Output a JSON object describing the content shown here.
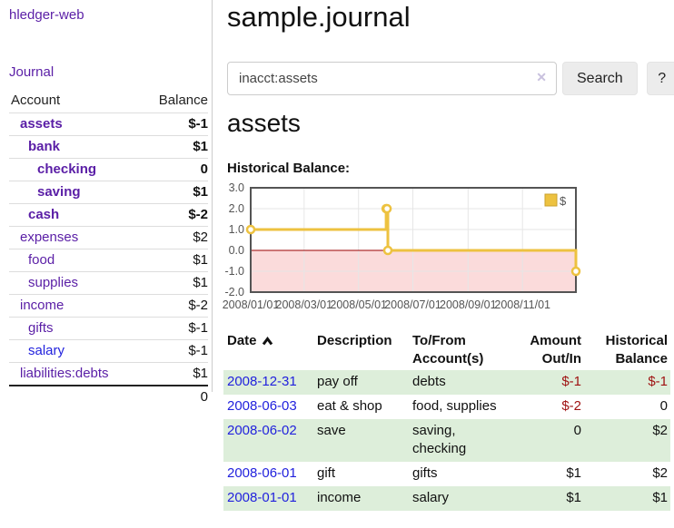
{
  "app": {
    "brand": "hledger-web",
    "nav_journal": "Journal"
  },
  "sidebar": {
    "table_headers": {
      "account": "Account",
      "balance": "Balance"
    },
    "accounts": [
      {
        "name": "assets",
        "indent": 1,
        "bold": true,
        "link_color": "purple",
        "balance": "$-1",
        "balance_class": "neg-strong"
      },
      {
        "name": "bank",
        "indent": 2,
        "bold": true,
        "link_color": "purple",
        "balance": "$1",
        "balance_class": "pos"
      },
      {
        "name": "checking",
        "indent": 3,
        "bold": true,
        "link_color": "purple",
        "balance": "0",
        "balance_class": "pos"
      },
      {
        "name": "saving",
        "indent": 3,
        "bold": true,
        "link_color": "purple",
        "balance": "$1",
        "balance_class": "pos"
      },
      {
        "name": "cash",
        "indent": 2,
        "bold": true,
        "link_color": "purple",
        "balance": "$-2",
        "balance_class": "neg-strong"
      },
      {
        "name": "expenses",
        "indent": 1,
        "bold": false,
        "link_color": "purple",
        "balance": "$2",
        "balance_class": "pos"
      },
      {
        "name": "food",
        "indent": 2,
        "bold": false,
        "link_color": "purple",
        "balance": "$1",
        "balance_class": "pos"
      },
      {
        "name": "supplies",
        "indent": 2,
        "bold": false,
        "link_color": "purple",
        "balance": "$1",
        "balance_class": "pos"
      },
      {
        "name": "income",
        "indent": 1,
        "bold": false,
        "link_color": "purple",
        "balance": "$-2",
        "balance_class": "neg-soft"
      },
      {
        "name": "gifts",
        "indent": 2,
        "bold": false,
        "link_color": "purple",
        "balance": "$-1",
        "balance_class": "neg-soft"
      },
      {
        "name": "salary",
        "indent": 2,
        "bold": false,
        "link_color": "blue",
        "balance": "$-1",
        "balance_class": "neg-soft"
      },
      {
        "name": "liabilities:debts",
        "indent": 1,
        "bold": false,
        "link_color": "purple",
        "balance": "$1",
        "balance_class": "pos"
      }
    ],
    "total": "0"
  },
  "main": {
    "title": "sample.journal",
    "search": {
      "value": "inacct:assets",
      "clear_icon": "✕",
      "button": "Search",
      "help_button": "?"
    },
    "account_heading": "assets",
    "chart_label": "Historical Balance:"
  },
  "register": {
    "sort_direction": "ascending",
    "headers": {
      "date": "Date",
      "description": "Description",
      "accounts": "To/From Account(s)",
      "amount": "Amount Out/In",
      "balance": "Historical Balance"
    },
    "rows": [
      {
        "date": "2008-12-31",
        "description": "pay off",
        "accounts": "debts",
        "amount": "$-1",
        "amount_negative": true,
        "balance": "$-1",
        "balance_negative": true,
        "shaded": true
      },
      {
        "date": "2008-06-03",
        "description": "eat & shop",
        "accounts": "food, supplies",
        "amount": "$-2",
        "amount_negative": true,
        "balance": "0",
        "balance_negative": false,
        "shaded": false
      },
      {
        "date": "2008-06-02",
        "description": "save",
        "accounts": "saving, checking",
        "amount": "0",
        "amount_negative": false,
        "balance": "$2",
        "balance_negative": false,
        "shaded": true
      },
      {
        "date": "2008-06-01",
        "description": "gift",
        "accounts": "gifts",
        "amount": "$1",
        "amount_negative": false,
        "balance": "$2",
        "balance_negative": false,
        "shaded": false
      },
      {
        "date": "2008-01-01",
        "description": "income",
        "accounts": "salary",
        "amount": "$1",
        "amount_negative": false,
        "balance": "$1",
        "balance_negative": false,
        "shaded": true
      }
    ]
  },
  "chart_data": {
    "type": "line",
    "step": true,
    "title": "Historical Balance",
    "series": [
      {
        "name": "$",
        "color": "#edc240",
        "points": [
          [
            "2008-01-01",
            1
          ],
          [
            "2008-06-01",
            2
          ],
          [
            "2008-06-02",
            2
          ],
          [
            "2008-06-03",
            0
          ],
          [
            "2008-12-31",
            -1
          ]
        ]
      }
    ],
    "x_range": [
      "2008-01-01",
      "2008-12-31"
    ],
    "ylim": [
      -2,
      3
    ],
    "y_ticks": [
      "3.0",
      "2.0",
      "1.0",
      "0.0",
      "-1.0",
      "-2.0"
    ],
    "x_ticks": [
      {
        "date": "2008-01-01",
        "label": "2008/01/01"
      },
      {
        "date": "2008-03-01",
        "label": "2008/03/01"
      },
      {
        "date": "2008-05-01",
        "label": "2008/05/01"
      },
      {
        "date": "2008-07-01",
        "label": "2008/07/01"
      },
      {
        "date": "2008-09-01",
        "label": "2008/09/01"
      },
      {
        "date": "2008-11-01",
        "label": "2008/11/01"
      }
    ],
    "legend": {
      "label": "$",
      "position": "top-right"
    },
    "grid": true,
    "negative_region_color": "#fbdbdb",
    "zero_line_color": "#990000",
    "border_color": "#545454",
    "gridline_color": "#e6e6e6",
    "tick_label_color": "#545454"
  },
  "colors": {
    "link_purple": "#5a1ea6",
    "link_blue": "#2222dd",
    "negative_strong": "#9e1111",
    "negative_soft": "#bd7575",
    "row_stripe_green": "#ddeeda",
    "chart_gold": "#edc240",
    "chart_pink": "#fbdbdb",
    "button_gray": "#ececec"
  }
}
